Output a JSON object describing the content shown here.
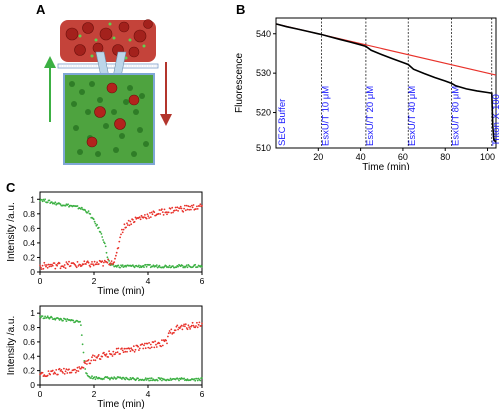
{
  "panels": {
    "a": "A",
    "b": "B",
    "c": "C"
  },
  "colors": {
    "vesicle_red": "#c0392b",
    "dye_green": "#3cb043",
    "cell_green": "#5cbf4a",
    "fluor_line": "#000000",
    "fit_line": "#e8322b",
    "event_line": "#000000",
    "event_label": "#1a1aff"
  },
  "chart_data": [
    {
      "type": "line",
      "panel": "B",
      "title": "",
      "xlabel": "Time (min)",
      "ylabel": "Fluorescence",
      "xlim": [
        0,
        104
      ],
      "ylim": [
        511,
        544
      ],
      "xticks": [
        20,
        40,
        60,
        80,
        100
      ],
      "yticks": [
        510,
        520,
        530,
        540
      ],
      "events": [
        {
          "x": 1,
          "label": "SEC Buffer"
        },
        {
          "x": 21.5,
          "label": "EsxU/T 10 μM"
        },
        {
          "x": 42.5,
          "label": "EsxU/T 20 μM"
        },
        {
          "x": 62.5,
          "label": "EsxU/T 40 μM"
        },
        {
          "x": 83,
          "label": "EsxU/T 80 μM"
        },
        {
          "x": 102,
          "label": "Triton X-100"
        }
      ],
      "series": [
        {
          "x": [
            0,
            5,
            10,
            15,
            20,
            21.5,
            25,
            30,
            35,
            40,
            42.5,
            45,
            50,
            55,
            60,
            62.5,
            65,
            70,
            75,
            80,
            83,
            85,
            90,
            95,
            100,
            102,
            102.5,
            103,
            104
          ],
          "values": [
            542.5,
            541.8,
            541.2,
            540.6,
            540.0,
            539.8,
            539.3,
            538.6,
            537.9,
            537.2,
            536.8,
            535.8,
            534.7,
            533.7,
            532.7,
            532.2,
            531.0,
            529.9,
            528.9,
            528.0,
            527.4,
            526.8,
            526.0,
            525.5,
            525.1,
            524.9,
            516.5,
            513.0,
            512.5
          ]
        },
        {
          "x": [
            0,
            104
          ],
          "values": [
            542.5,
            529.5
          ]
        }
      ]
    },
    {
      "type": "scatter",
      "panel": "C-top",
      "xlabel": "Time (min)",
      "ylabel": "Intensity /a.u.",
      "xlim": [
        0,
        6
      ],
      "ylim": [
        0,
        1.1
      ],
      "xticks": [
        0,
        2,
        4,
        6
      ],
      "yticks": [
        0,
        0.2,
        0.4,
        0.6,
        0.8,
        1
      ],
      "series": [
        {
          "x": [
            0,
            0.5,
            1,
            1.5,
            1.8,
            2.0,
            2.2,
            2.4,
            2.5,
            2.6,
            2.7,
            2.8,
            3.0,
            3.5,
            4,
            4.5,
            5,
            5.5,
            6
          ],
          "values": [
            1.0,
            0.95,
            0.92,
            0.88,
            0.82,
            0.7,
            0.58,
            0.4,
            0.2,
            0.1,
            0.08,
            0.08,
            0.08,
            0.08,
            0.08,
            0.08,
            0.08,
            0.08,
            0.08
          ]
        },
        {
          "x": [
            0,
            0.5,
            1,
            1.5,
            2.0,
            2.4,
            2.6,
            2.8,
            2.9,
            3.0,
            3.2,
            3.5,
            4,
            4.5,
            5,
            5.5,
            6
          ],
          "values": [
            0.08,
            0.09,
            0.1,
            0.1,
            0.11,
            0.12,
            0.14,
            0.16,
            0.35,
            0.55,
            0.66,
            0.72,
            0.78,
            0.82,
            0.86,
            0.88,
            0.9
          ]
        }
      ]
    },
    {
      "type": "scatter",
      "panel": "C-bottom",
      "xlabel": "Time (min)",
      "ylabel": "Intensity /a.u.",
      "xlim": [
        0,
        6
      ],
      "ylim": [
        0,
        1.1
      ],
      "xticks": [
        0,
        2,
        4,
        6
      ],
      "yticks": [
        0,
        0.2,
        0.4,
        0.6,
        0.8,
        1
      ],
      "series": [
        {
          "x": [
            0,
            0.5,
            1,
            1.5,
            1.6,
            1.7,
            1.8,
            2,
            3,
            4,
            5,
            6
          ],
          "values": [
            0.95,
            0.93,
            0.9,
            0.88,
            0.5,
            0.15,
            0.12,
            0.1,
            0.09,
            0.08,
            0.08,
            0.08
          ]
        },
        {
          "x": [
            0,
            0.5,
            1,
            1.5,
            1.7,
            2,
            2.5,
            3,
            3.5,
            4,
            4.5,
            4.7,
            4.8,
            5,
            5.5,
            6
          ],
          "values": [
            0.15,
            0.17,
            0.2,
            0.22,
            0.3,
            0.38,
            0.42,
            0.48,
            0.5,
            0.55,
            0.58,
            0.6,
            0.72,
            0.78,
            0.82,
            0.85
          ]
        }
      ]
    }
  ]
}
